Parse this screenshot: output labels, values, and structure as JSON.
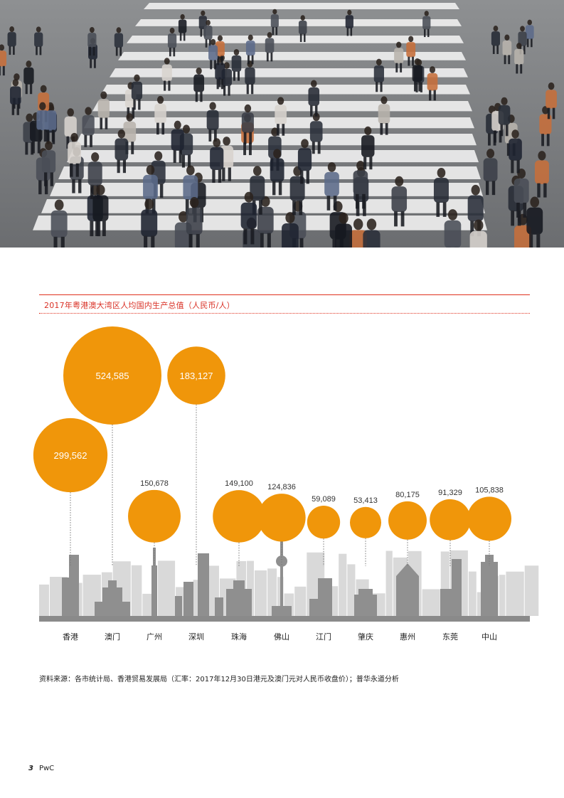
{
  "chart_data": {
    "type": "bubble",
    "title": "2017年粤港澳大湾区人均国内生产总值（人民币/人）",
    "categories": [
      "香港",
      "澳门",
      "广州",
      "深圳",
      "珠海",
      "佛山",
      "江门",
      "肇庆",
      "惠州",
      "东莞",
      "中山"
    ],
    "values": [
      299562,
      524585,
      150678,
      183127,
      149100,
      124836,
      59089,
      53413,
      80175,
      91329,
      105838
    ],
    "value_labels": [
      "299,562",
      "524,585",
      "150,678",
      "183,127",
      "149,100",
      "124,836",
      "59,089",
      "53,413",
      "80,175",
      "91,329",
      "105,838"
    ],
    "bubble_color": "#f0960a",
    "skyline_colors": {
      "foreground": "#8f8f8f",
      "background": "#d9d9d9",
      "base": "#8a8a8a"
    }
  },
  "source": "资料来源：各市统计局、香港贸易发展局（汇率：2017年12月30日港元及澳门元对人民币收盘价）；普华永道分析",
  "footer": {
    "page_number": "3",
    "brand": "PwC"
  },
  "colors": {
    "accent_red": "#e0301e",
    "bubble": "#f0960a"
  }
}
